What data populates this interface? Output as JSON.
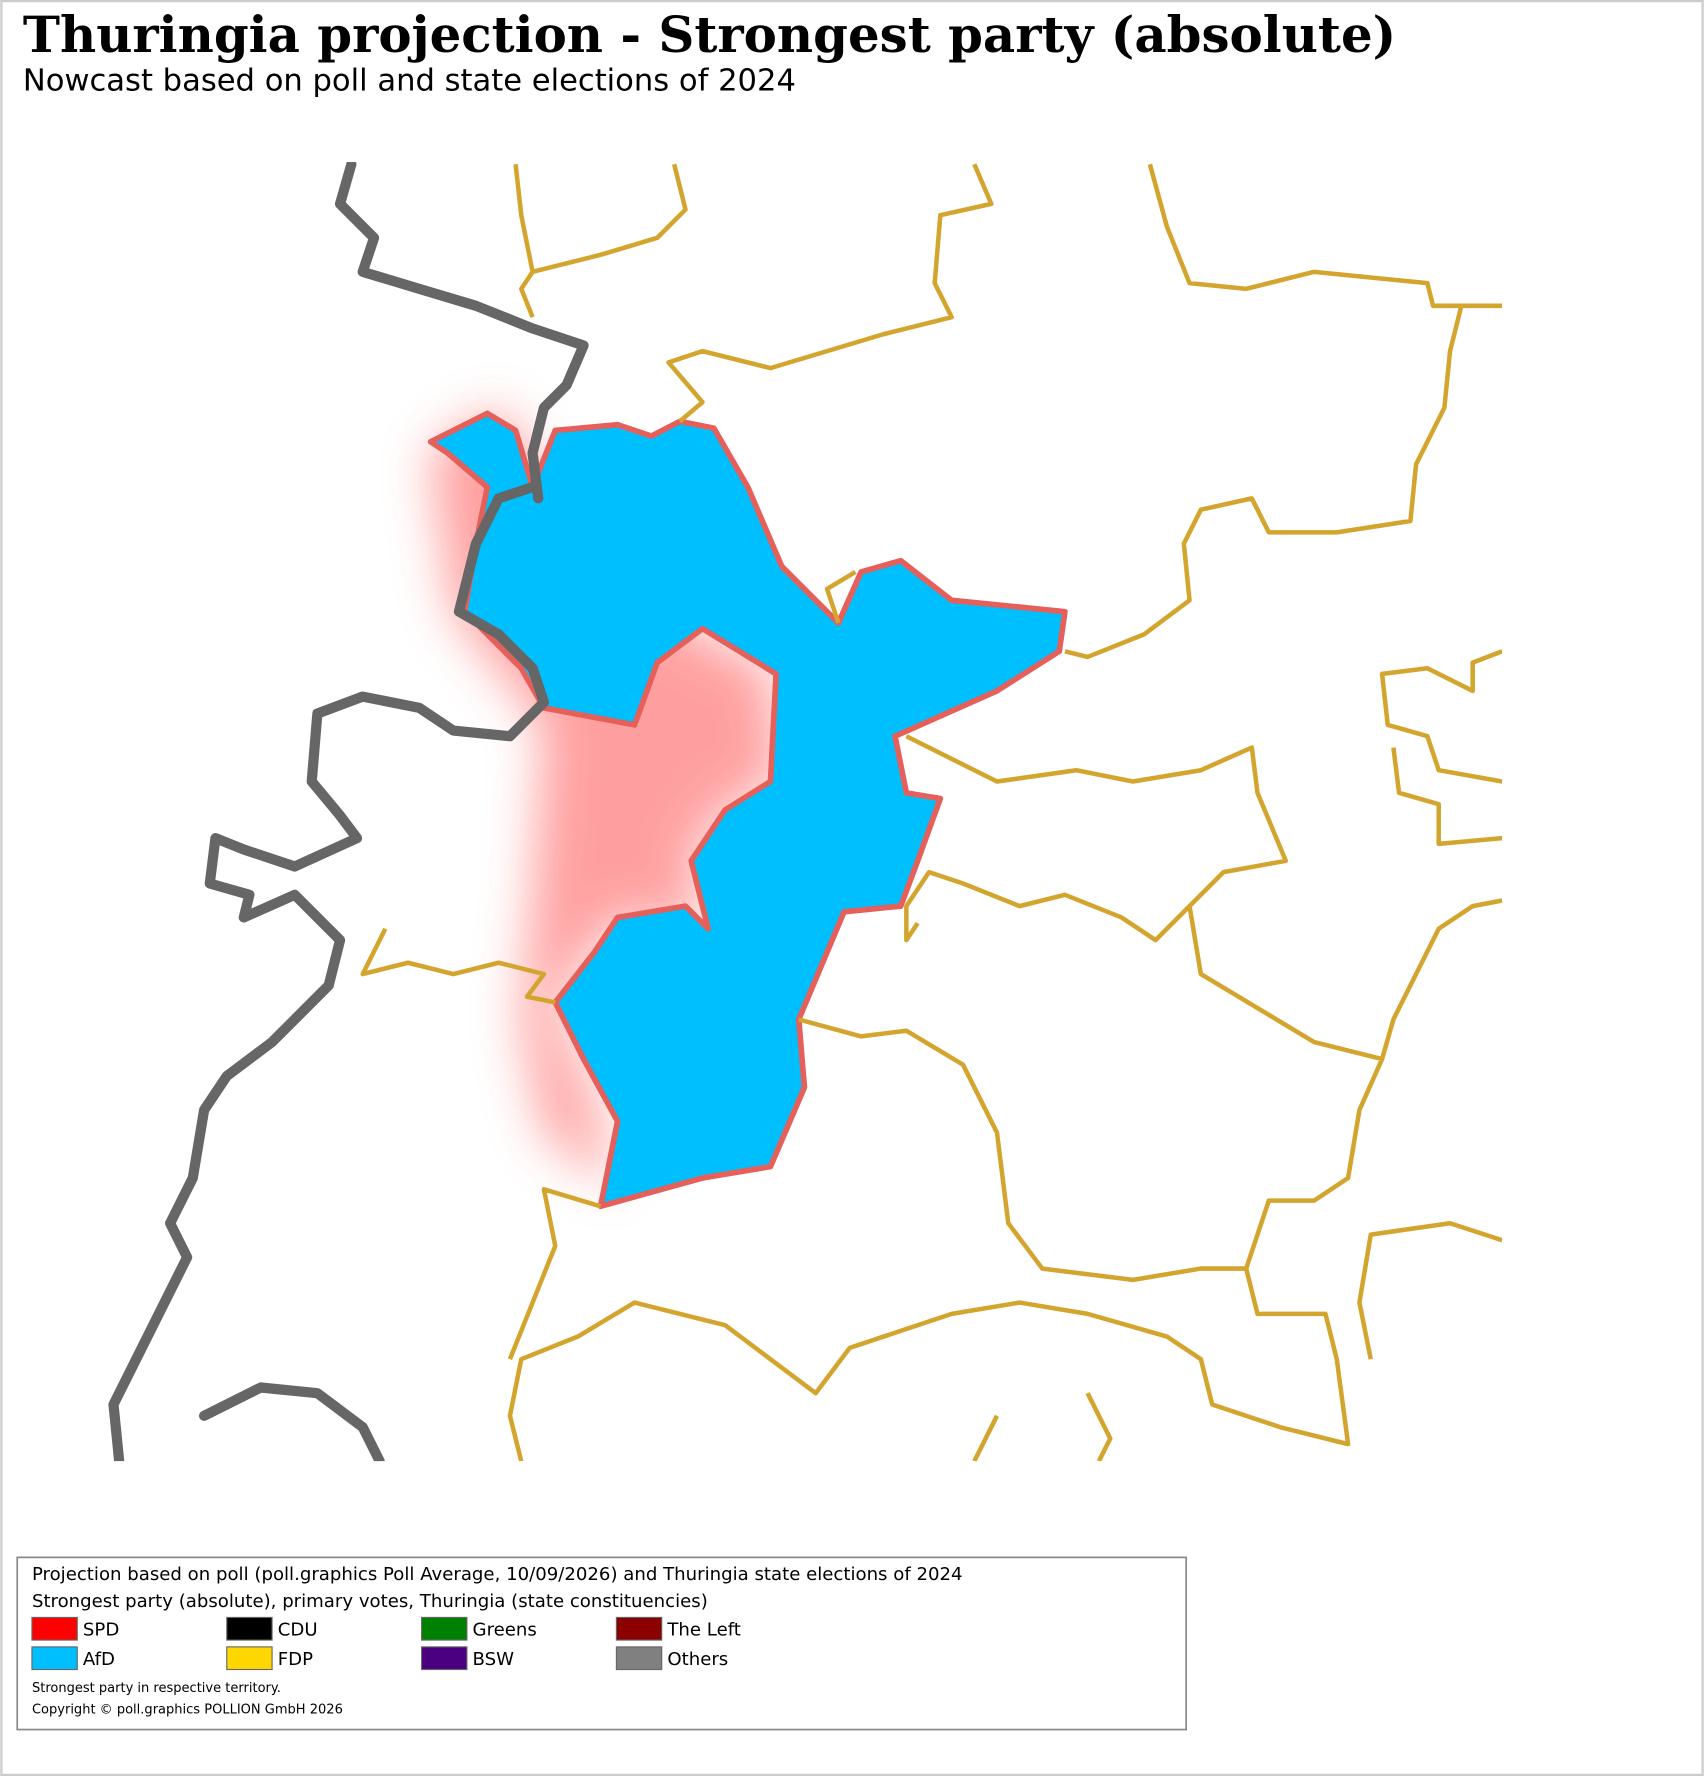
{
  "header": {
    "title": "Thuringia projection - Strongest party (absolute)",
    "subtitle": "Nowcast based on poll and state elections of 2024"
  },
  "legend": {
    "source": "Projection based on poll (poll.graphics Poll Average, 10/09/2026) and Thuringia state elections of 2024",
    "description": "Strongest party (absolute), primary votes, Thuringia (state constituencies)",
    "items": [
      {
        "name": "SPD",
        "color": "#ff0000"
      },
      {
        "name": "CDU",
        "color": "#000000"
      },
      {
        "name": "Greens",
        "color": "#008000"
      },
      {
        "name": "The Left",
        "color": "#8b0000"
      },
      {
        "name": "AfD",
        "color": "#00bfff"
      },
      {
        "name": "FDP",
        "color": "#ffd700"
      },
      {
        "name": "BSW",
        "color": "#4b0082"
      },
      {
        "name": "Others",
        "color": "#808080"
      }
    ],
    "note": "Strongest party in respective territory.",
    "copyright": "Copyright © poll.graphics POLLION GmbH 2026"
  }
}
